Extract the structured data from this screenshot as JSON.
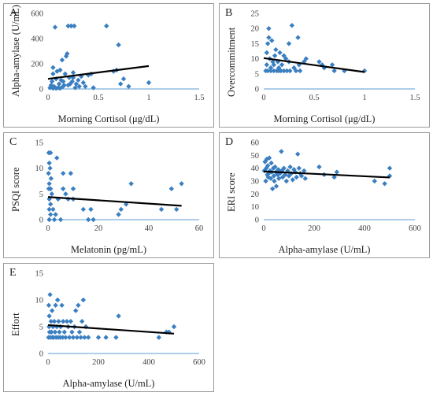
{
  "colors": {
    "point": "#3a7fc1",
    "trend": "#000000",
    "axis": "#5b9bd5",
    "border": "#9a9a9a"
  },
  "chart_data": [
    {
      "panel": "A",
      "type": "scatter",
      "xlabel": "Morning Cortisol (μg/dL)",
      "ylabel": "Alpha-amylase (U/mL)",
      "xlim": [
        0,
        1.5
      ],
      "ylim": [
        0,
        600
      ],
      "xticks": [
        "0",
        "0.5",
        "1",
        "1.5"
      ],
      "yticks": [
        "0",
        "200",
        "400",
        "600"
      ],
      "trendline": [
        [
          0,
          80
        ],
        [
          1.0,
          182
        ]
      ],
      "points": [
        [
          0.02,
          10
        ],
        [
          0.03,
          30
        ],
        [
          0.04,
          60
        ],
        [
          0.05,
          120
        ],
        [
          0.05,
          170
        ],
        [
          0.06,
          20
        ],
        [
          0.07,
          490
        ],
        [
          0.08,
          80
        ],
        [
          0.09,
          140
        ],
        [
          0.1,
          10
        ],
        [
          0.11,
          40
        ],
        [
          0.12,
          150
        ],
        [
          0.13,
          70
        ],
        [
          0.14,
          230
        ],
        [
          0.15,
          20
        ],
        [
          0.16,
          30
        ],
        [
          0.17,
          120
        ],
        [
          0.18,
          260
        ],
        [
          0.19,
          280
        ],
        [
          0.2,
          500
        ],
        [
          0.21,
          90
        ],
        [
          0.22,
          40
        ],
        [
          0.23,
          500
        ],
        [
          0.24,
          60
        ],
        [
          0.25,
          130
        ],
        [
          0.26,
          500
        ],
        [
          0.27,
          10
        ],
        [
          0.28,
          40
        ],
        [
          0.3,
          70
        ],
        [
          0.31,
          20
        ],
        [
          0.33,
          100
        ],
        [
          0.35,
          50
        ],
        [
          0.37,
          20
        ],
        [
          0.4,
          110
        ],
        [
          0.43,
          120
        ],
        [
          0.45,
          10
        ],
        [
          0.58,
          500
        ],
        [
          0.65,
          140
        ],
        [
          0.68,
          150
        ],
        [
          0.7,
          350
        ],
        [
          0.72,
          40
        ],
        [
          0.75,
          80
        ],
        [
          0.8,
          20
        ],
        [
          1.0,
          50
        ],
        [
          0.05,
          5
        ],
        [
          0.08,
          5
        ],
        [
          0.12,
          5
        ],
        [
          0.15,
          60
        ],
        [
          0.2,
          30
        ],
        [
          0.25,
          90
        ]
      ]
    },
    {
      "panel": "B",
      "type": "scatter",
      "xlabel": "Morning Cortisol (μg/dL)",
      "ylabel": "Overcommitment",
      "xlim": [
        0,
        1.5
      ],
      "ylim": [
        0,
        25
      ],
      "xticks": [
        "0",
        "0.5",
        "1",
        "1.5"
      ],
      "yticks": [
        "0",
        "5",
        "10",
        "15",
        "20",
        "25"
      ],
      "trendline": [
        [
          0,
          10.2
        ],
        [
          1.0,
          5.6
        ]
      ],
      "points": [
        [
          0.02,
          6
        ],
        [
          0.03,
          8
        ],
        [
          0.03,
          12
        ],
        [
          0.04,
          15
        ],
        [
          0.05,
          17
        ],
        [
          0.05,
          20
        ],
        [
          0.06,
          10
        ],
        [
          0.07,
          7
        ],
        [
          0.08,
          16
        ],
        [
          0.09,
          9
        ],
        [
          0.1,
          6
        ],
        [
          0.11,
          11
        ],
        [
          0.12,
          13
        ],
        [
          0.13,
          6
        ],
        [
          0.14,
          9
        ],
        [
          0.15,
          7
        ],
        [
          0.16,
          12
        ],
        [
          0.17,
          6
        ],
        [
          0.18,
          8
        ],
        [
          0.2,
          6
        ],
        [
          0.22,
          10
        ],
        [
          0.23,
          6
        ],
        [
          0.25,
          15
        ],
        [
          0.26,
          6
        ],
        [
          0.28,
          21
        ],
        [
          0.3,
          7
        ],
        [
          0.32,
          6
        ],
        [
          0.34,
          17
        ],
        [
          0.36,
          6
        ],
        [
          0.4,
          9
        ],
        [
          0.42,
          10
        ],
        [
          0.55,
          9
        ],
        [
          0.58,
          8
        ],
        [
          0.6,
          7
        ],
        [
          0.68,
          8
        ],
        [
          0.7,
          6
        ],
        [
          0.8,
          6
        ],
        [
          1.0,
          6
        ],
        [
          0.04,
          6
        ],
        [
          0.07,
          6
        ],
        [
          0.1,
          8
        ],
        [
          0.15,
          6
        ],
        [
          0.2,
          11
        ],
        [
          0.25,
          9
        ],
        [
          0.35,
          8
        ]
      ]
    },
    {
      "panel": "C",
      "type": "scatter",
      "xlabel": "Melatonin (pg/mL)",
      "ylabel": "PSQI score",
      "xlim": [
        0,
        60
      ],
      "ylim": [
        0,
        15
      ],
      "xticks": [
        "0",
        "20",
        "40",
        "60"
      ],
      "yticks": [
        "0",
        "5",
        "10",
        "15"
      ],
      "trendline": [
        [
          0,
          4.4
        ],
        [
          53,
          2.7
        ]
      ],
      "points": [
        [
          0.3,
          13
        ],
        [
          1,
          13
        ],
        [
          0.5,
          11
        ],
        [
          0.8,
          10
        ],
        [
          0.2,
          9
        ],
        [
          1.2,
          8
        ],
        [
          0.5,
          7
        ],
        [
          0.3,
          6
        ],
        [
          1,
          6
        ],
        [
          1.5,
          5
        ],
        [
          0.5,
          4
        ],
        [
          1,
          3
        ],
        [
          0.5,
          2
        ],
        [
          1,
          1
        ],
        [
          0.5,
          0
        ],
        [
          2,
          2
        ],
        [
          2.5,
          0
        ],
        [
          3,
          1
        ],
        [
          3.5,
          12
        ],
        [
          4,
          4
        ],
        [
          5,
          0
        ],
        [
          6,
          9
        ],
        [
          6,
          6
        ],
        [
          7,
          5
        ],
        [
          8,
          4
        ],
        [
          9,
          9
        ],
        [
          10,
          6
        ],
        [
          10,
          4
        ],
        [
          14,
          2
        ],
        [
          16,
          0
        ],
        [
          17,
          2
        ],
        [
          18,
          0
        ],
        [
          28,
          1
        ],
        [
          29,
          2
        ],
        [
          31,
          3
        ],
        [
          33,
          7
        ],
        [
          45,
          2
        ],
        [
          49,
          6
        ],
        [
          51,
          2
        ],
        [
          53,
          7
        ]
      ]
    },
    {
      "panel": "D",
      "type": "scatter",
      "xlabel": "Alpha-amylase (U/mL)",
      "ylabel": "ERI score",
      "xlim": [
        0,
        600
      ],
      "ylim": [
        0,
        60
      ],
      "xticks": [
        "0",
        "200",
        "400",
        "600"
      ],
      "yticks": [
        "0",
        "10",
        "20",
        "30",
        "40",
        "50",
        "60"
      ],
      "trendline": [
        [
          0,
          37.5
        ],
        [
          500,
          32.8
        ]
      ],
      "points": [
        [
          2,
          38
        ],
        [
          5,
          45
        ],
        [
          8,
          30
        ],
        [
          10,
          40
        ],
        [
          12,
          47
        ],
        [
          14,
          35
        ],
        [
          16,
          42
        ],
        [
          18,
          33
        ],
        [
          20,
          36
        ],
        [
          22,
          48
        ],
        [
          25,
          38
        ],
        [
          28,
          32
        ],
        [
          30,
          44
        ],
        [
          32,
          37
        ],
        [
          35,
          24
        ],
        [
          38,
          40
        ],
        [
          40,
          34
        ],
        [
          42,
          30
        ],
        [
          45,
          41
        ],
        [
          48,
          37
        ],
        [
          50,
          26
        ],
        [
          55,
          35
        ],
        [
          58,
          39
        ],
        [
          60,
          32
        ],
        [
          65,
          36
        ],
        [
          70,
          53
        ],
        [
          72,
          38
        ],
        [
          75,
          33
        ],
        [
          80,
          40
        ],
        [
          85,
          35
        ],
        [
          90,
          30
        ],
        [
          95,
          38
        ],
        [
          100,
          34
        ],
        [
          105,
          41
        ],
        [
          110,
          36
        ],
        [
          115,
          31
        ],
        [
          120,
          39
        ],
        [
          125,
          37
        ],
        [
          130,
          33
        ],
        [
          135,
          51
        ],
        [
          140,
          40
        ],
        [
          145,
          36
        ],
        [
          150,
          34
        ],
        [
          160,
          38
        ],
        [
          165,
          32
        ],
        [
          220,
          41
        ],
        [
          240,
          35
        ],
        [
          280,
          33
        ],
        [
          290,
          37
        ],
        [
          440,
          30
        ],
        [
          480,
          28
        ],
        [
          500,
          34
        ],
        [
          500,
          40
        ]
      ]
    },
    {
      "panel": "E",
      "type": "scatter",
      "xlabel": "Alpha-amylase (U/mL)",
      "ylabel": "Effort",
      "xlim": [
        0,
        600
      ],
      "ylim": [
        0,
        15
      ],
      "xticks": [
        "0",
        "200",
        "400",
        "600"
      ],
      "yticks": [
        "0",
        "5",
        "10",
        "15"
      ],
      "trendline": [
        [
          0,
          5.3
        ],
        [
          500,
          3.7
        ]
      ],
      "points": [
        [
          2,
          3
        ],
        [
          3,
          9
        ],
        [
          4,
          5
        ],
        [
          5,
          7
        ],
        [
          6,
          4
        ],
        [
          8,
          11
        ],
        [
          10,
          3
        ],
        [
          12,
          6
        ],
        [
          14,
          4
        ],
        [
          16,
          8
        ],
        [
          18,
          3
        ],
        [
          20,
          5
        ],
        [
          22,
          3
        ],
        [
          25,
          6
        ],
        [
          28,
          4
        ],
        [
          30,
          9
        ],
        [
          32,
          3
        ],
        [
          35,
          5
        ],
        [
          38,
          10
        ],
        [
          40,
          3
        ],
        [
          42,
          6
        ],
        [
          45,
          4
        ],
        [
          48,
          3
        ],
        [
          50,
          5
        ],
        [
          55,
          9
        ],
        [
          58,
          3
        ],
        [
          60,
          6
        ],
        [
          65,
          4
        ],
        [
          70,
          3
        ],
        [
          75,
          6
        ],
        [
          80,
          5
        ],
        [
          85,
          3
        ],
        [
          90,
          6
        ],
        [
          95,
          4
        ],
        [
          100,
          3
        ],
        [
          105,
          5
        ],
        [
          110,
          8
        ],
        [
          115,
          3
        ],
        [
          120,
          9
        ],
        [
          125,
          4
        ],
        [
          130,
          3
        ],
        [
          135,
          6
        ],
        [
          140,
          10
        ],
        [
          145,
          3
        ],
        [
          150,
          5
        ],
        [
          160,
          3
        ],
        [
          200,
          3
        ],
        [
          230,
          3
        ],
        [
          270,
          3
        ],
        [
          280,
          7
        ],
        [
          440,
          3
        ],
        [
          470,
          4
        ],
        [
          480,
          4
        ],
        [
          500,
          5
        ]
      ]
    }
  ]
}
